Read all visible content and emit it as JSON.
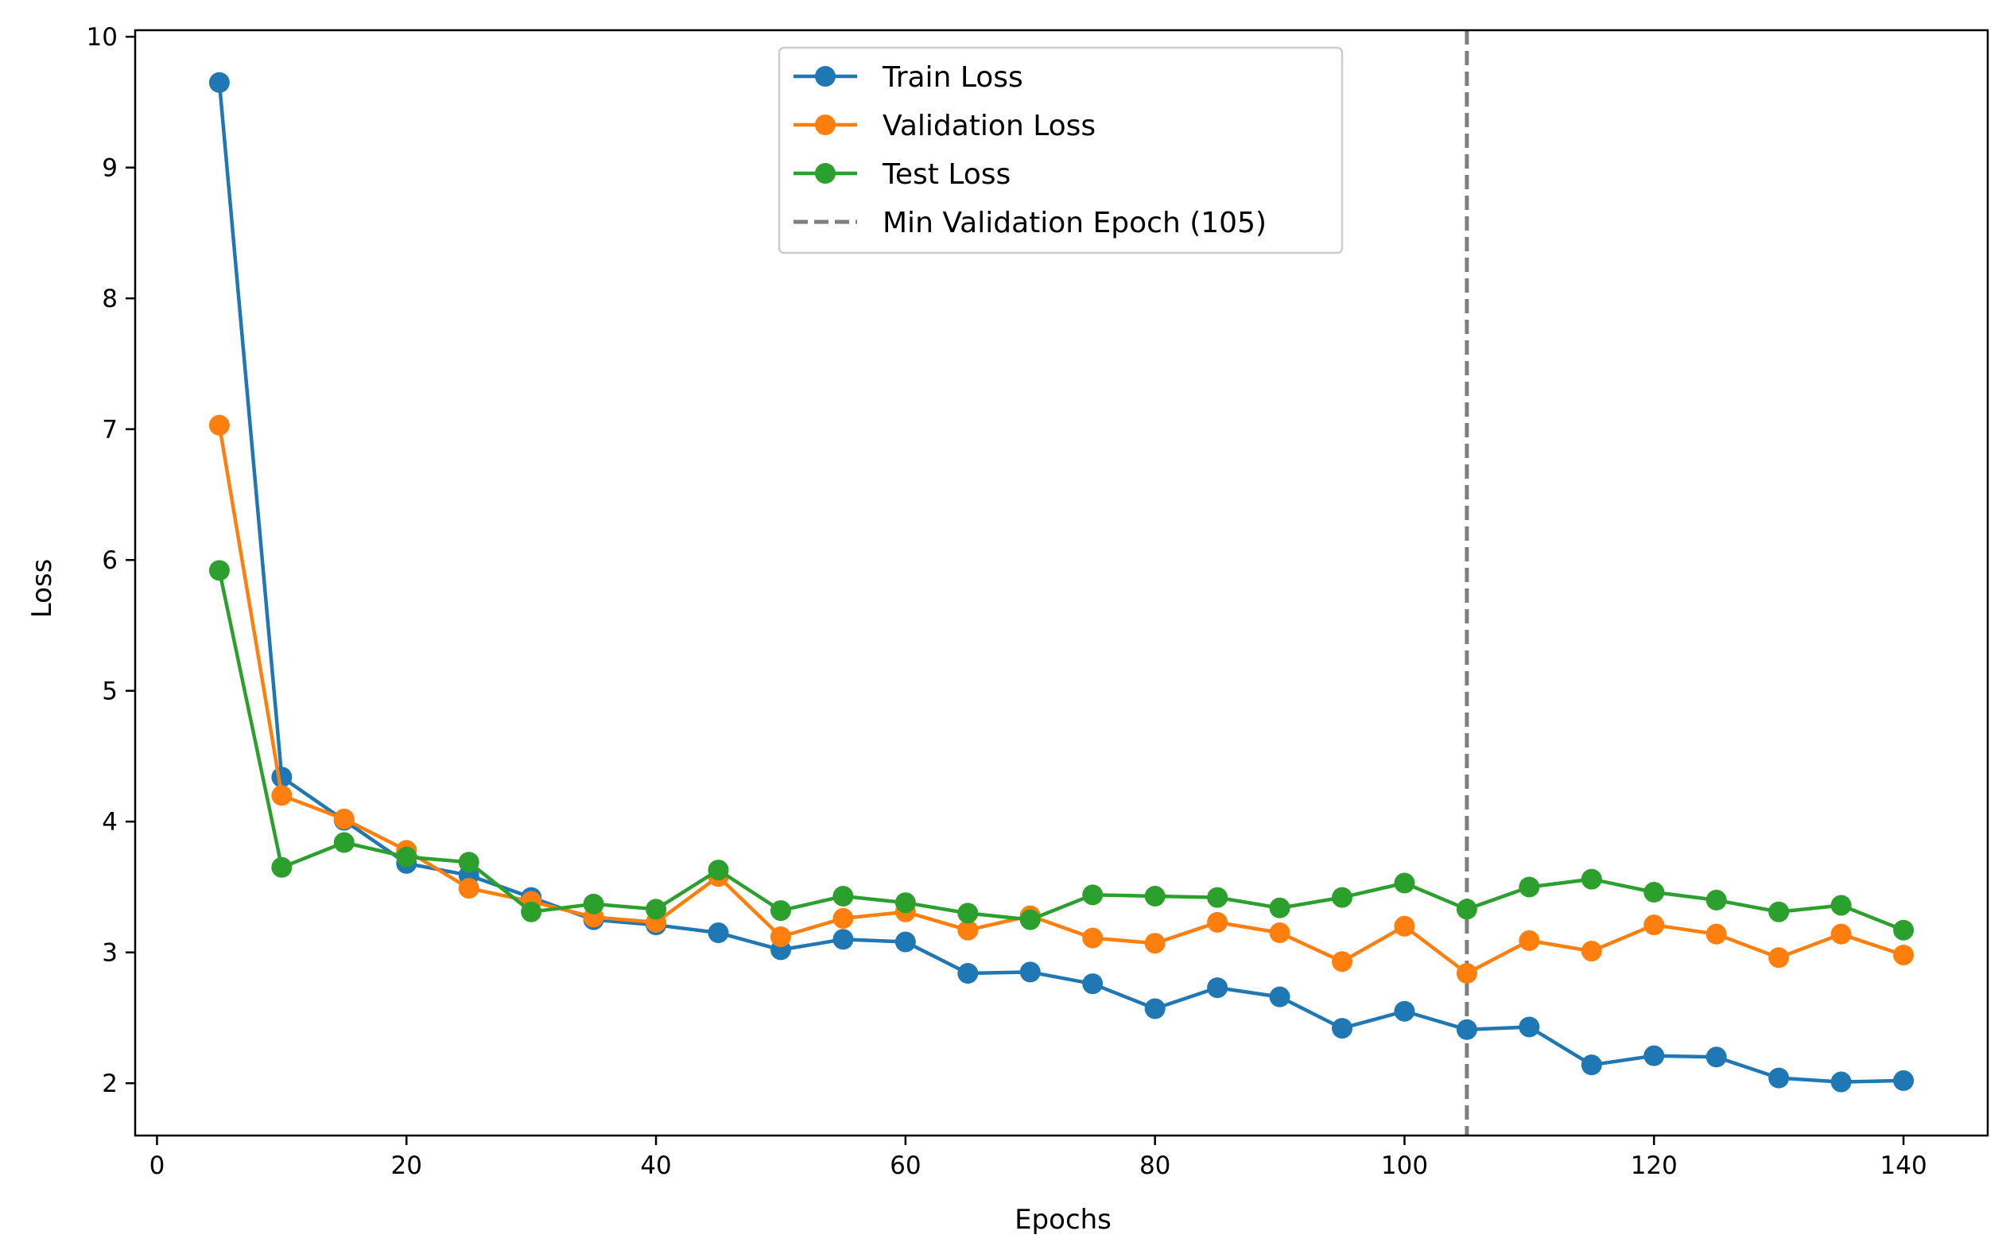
{
  "chart_data": {
    "type": "line",
    "title": "",
    "xlabel": "Epochs",
    "ylabel": "Loss",
    "xlim": [
      -1.75,
      146.75
    ],
    "ylim": [
      1.6,
      10.05
    ],
    "xticks": [
      0,
      20,
      40,
      60,
      80,
      100,
      120,
      140
    ],
    "yticks": [
      2,
      3,
      4,
      5,
      6,
      7,
      8,
      9,
      10
    ],
    "grid": false,
    "legend_position": "top-center",
    "x": [
      5,
      10,
      15,
      20,
      25,
      30,
      35,
      40,
      45,
      50,
      55,
      60,
      65,
      70,
      75,
      80,
      85,
      90,
      95,
      100,
      105,
      110,
      115,
      120,
      125,
      130,
      135,
      140
    ],
    "series": [
      {
        "name": "Train Loss",
        "color": "#1f77b4",
        "values": [
          9.65,
          4.34,
          4.01,
          3.68,
          3.59,
          3.42,
          3.25,
          3.21,
          3.15,
          3.02,
          3.1,
          3.08,
          2.84,
          2.85,
          2.76,
          2.57,
          2.73,
          2.66,
          2.42,
          2.55,
          2.41,
          2.43,
          2.14,
          2.21,
          2.2,
          2.04,
          2.01,
          2.02
        ]
      },
      {
        "name": "Validation Loss",
        "color": "#ff7f0e",
        "values": [
          7.03,
          4.2,
          4.02,
          3.78,
          3.49,
          3.39,
          3.27,
          3.23,
          3.58,
          3.12,
          3.26,
          3.31,
          3.17,
          3.28,
          3.11,
          3.07,
          3.23,
          3.15,
          2.93,
          3.2,
          2.84,
          3.09,
          3.01,
          3.21,
          3.14,
          2.96,
          3.14,
          2.98
        ]
      },
      {
        "name": "Test Loss",
        "color": "#2ca02c",
        "values": [
          5.92,
          3.65,
          3.84,
          3.73,
          3.69,
          3.31,
          3.37,
          3.33,
          3.63,
          3.32,
          3.43,
          3.38,
          3.3,
          3.25,
          3.44,
          3.43,
          3.42,
          3.34,
          3.42,
          3.53,
          3.33,
          3.5,
          3.56,
          3.46,
          3.4,
          3.31,
          3.36,
          3.17
        ]
      }
    ],
    "vline": {
      "name": "Min Validation Epoch (105)",
      "x": 105,
      "color": "#7f7f7f",
      "style": "dashed"
    }
  }
}
